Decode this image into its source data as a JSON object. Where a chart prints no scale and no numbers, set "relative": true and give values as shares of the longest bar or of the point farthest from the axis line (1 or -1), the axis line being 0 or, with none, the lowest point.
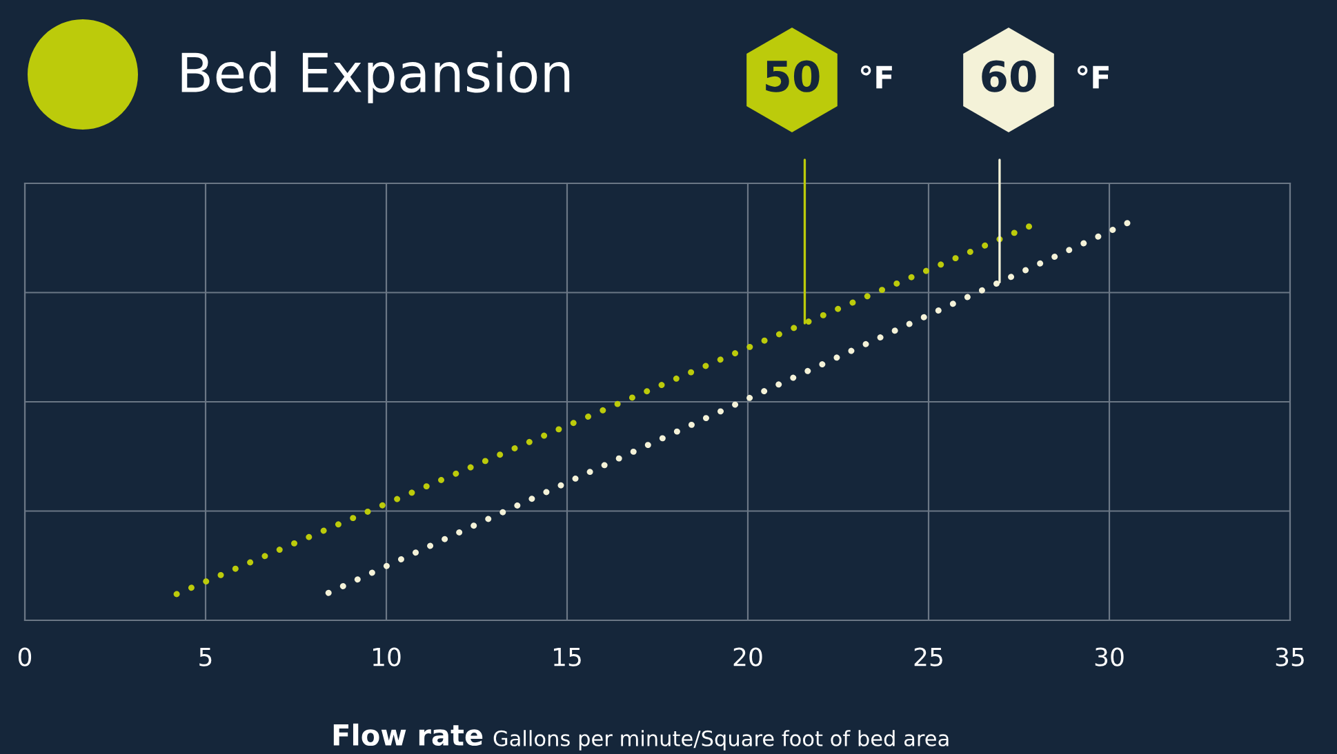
{
  "chart_data": {
    "type": "line",
    "title": "Bed Expansion",
    "xlabel": "Flow rate",
    "annotations": [
      "Gallons per minute/Square foot of bed area"
    ],
    "relative": true,
    "xlim": [
      0,
      35
    ],
    "xticks": [
      0,
      5,
      10,
      15,
      20,
      25,
      30,
      35
    ],
    "grid": true,
    "legend": false,
    "line_style": "dotted",
    "marker": "none",
    "series": [
      {
        "name": "50 °F",
        "color": "#bccb0b",
        "x": [
          4.2,
          28.0
        ],
        "values": [
          0.066,
          1.0
        ]
      },
      {
        "name": "60 °F",
        "color": "#f4f2d8",
        "x": [
          8.4,
          30.5
        ],
        "values": [
          0.069,
          1.0
        ]
      }
    ]
  }
}
